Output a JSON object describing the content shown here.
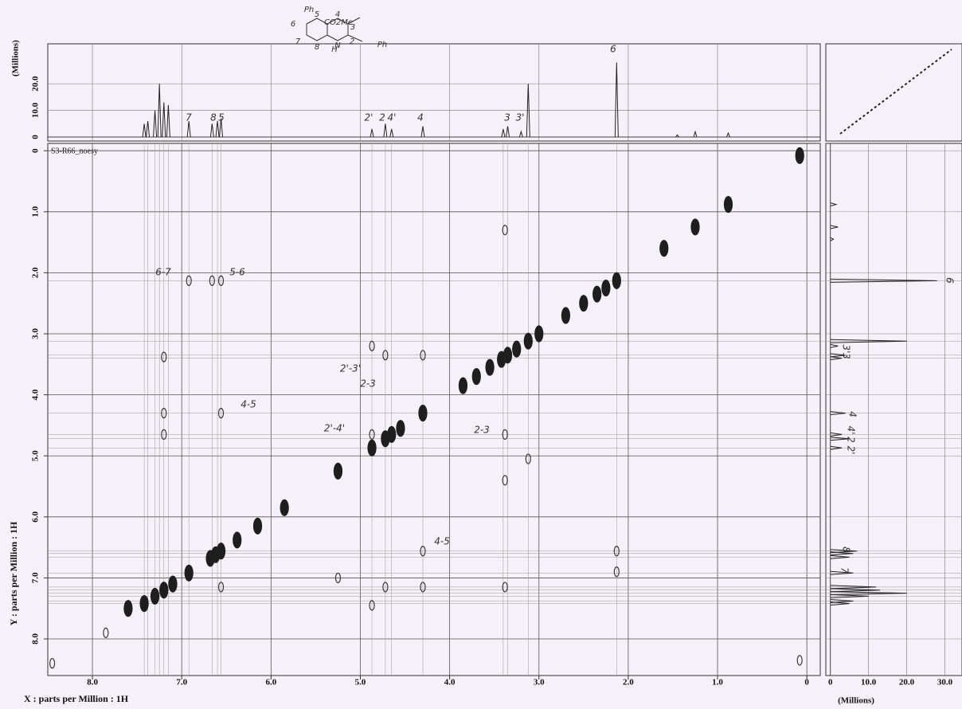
{
  "chart_data": [
    {
      "type": "contour",
      "title": "S3-R66_noesy",
      "x_label": "X : parts per Million : 1H",
      "y_label": "Y : parts per Million : 1H",
      "xlim": [
        8.5,
        -0.15
      ],
      "ylim": [
        -0.12,
        8.6
      ],
      "xticks": [
        {
          "value": 8,
          "label": "8.0"
        },
        {
          "value": 7,
          "label": "7.0"
        },
        {
          "value": 6,
          "label": "6.0"
        },
        {
          "value": 5,
          "label": "5.0"
        },
        {
          "value": 4,
          "label": "4.0"
        },
        {
          "value": 3,
          "label": "3.0"
        },
        {
          "value": 2,
          "label": "2.0"
        },
        {
          "value": 1,
          "label": "1.0"
        },
        0
      ],
      "yticks": [
        0,
        {
          "value": 1,
          "label": "1.0"
        },
        {
          "value": 2,
          "label": "2.0"
        },
        {
          "value": 3,
          "label": "3.0"
        },
        {
          "value": 4,
          "label": "4.0"
        },
        {
          "value": 5,
          "label": "5.0"
        },
        {
          "value": 6,
          "label": "6.0"
        },
        {
          "value": 7,
          "label": "7.0"
        },
        {
          "value": 8,
          "label": "8.0"
        }
      ],
      "grid": true,
      "series": [
        {
          "color": "#1e1e1e",
          "x": [
            0.08,
            0.88,
            1.25,
            1.6,
            2.13,
            2.25,
            2.35,
            2.5,
            2.7,
            3.0,
            3.12,
            3.25,
            3.35,
            3.42,
            3.55,
            3.7,
            3.85,
            4.3,
            4.55,
            4.65,
            4.72,
            4.87,
            5.25,
            5.85,
            6.15,
            6.38,
            6.56,
            6.62,
            6.68,
            6.92,
            7.1,
            7.2,
            7.3,
            7.42,
            7.6
          ],
          "values": [
            0.08,
            0.88,
            1.25,
            1.6,
            2.13,
            2.25,
            2.35,
            2.5,
            2.7,
            3.0,
            3.12,
            3.25,
            3.35,
            3.42,
            3.55,
            3.7,
            3.85,
            4.3,
            4.55,
            4.65,
            4.72,
            4.87,
            5.25,
            5.85,
            6.15,
            6.38,
            6.56,
            6.62,
            6.68,
            6.92,
            7.1,
            7.2,
            7.3,
            7.42,
            7.5
          ]
        },
        {
          "color": "#3a3a3a",
          "x": [
            6.92,
            6.56,
            6.66,
            7.2,
            7.2,
            7.2,
            6.56,
            6.56,
            4.87,
            4.72,
            4.3,
            4.87,
            4.3,
            4.3,
            4.72,
            3.38,
            3.38,
            3.38,
            3.38,
            2.13,
            2.13,
            5.25,
            4.87,
            8.45,
            7.85,
            0.08,
            3.12
          ],
          "values": [
            2.13,
            2.13,
            2.13,
            3.38,
            4.3,
            4.65,
            4.3,
            7.15,
            3.2,
            3.35,
            3.35,
            4.65,
            6.56,
            7.15,
            7.15,
            4.65,
            5.4,
            7.15,
            1.3,
            6.56,
            6.9,
            7.0,
            7.45,
            8.4,
            7.9,
            8.35,
            5.05
          ]
        }
      ],
      "annotations": [
        "6-7",
        "5-6",
        "2'-3'",
        "2-3",
        "4-5",
        "2'-4'",
        "2-3",
        "4-5"
      ],
      "structure": [
        "Ph",
        "CO2Me",
        "Ph",
        "6",
        "5",
        "7",
        "8",
        "4",
        "3",
        "2",
        "N",
        "H"
      ]
    },
    {
      "type": "spectrum",
      "y_label": "(Millions)",
      "ylim": [
        -1.5,
        35
      ],
      "yticks": [
        0,
        {
          "value": 10,
          "label": "10.0"
        },
        {
          "value": 20,
          "label": "20.0"
        }
      ],
      "x": [
        7.42,
        7.38,
        7.3,
        7.25,
        7.2,
        7.15,
        6.92,
        6.66,
        6.6,
        6.56,
        4.87,
        4.72,
        4.65,
        4.3,
        3.4,
        3.35,
        3.2,
        3.12,
        2.13,
        1.45,
        1.25,
        0.88
      ],
      "values": [
        5,
        6,
        10,
        20,
        13,
        12,
        6,
        5,
        6,
        7,
        3,
        5,
        3,
        4,
        3,
        4,
        2,
        20,
        28,
        0.8,
        2,
        1.5
      ],
      "peak_labels": [
        "7",
        "8",
        "5",
        "2'",
        "2",
        "4'",
        "4",
        "3",
        "3'",
        "6"
      ]
    },
    {
      "type": "spectrum",
      "x_label": "(Millions)",
      "xlim": [
        -1.2,
        34.5
      ],
      "xticks": [
        0,
        {
          "value": 10,
          "label": "10.0"
        },
        {
          "value": 20,
          "label": "20.0"
        },
        {
          "value": 30,
          "label": "30.0"
        }
      ],
      "y": [
        7.42,
        7.38,
        7.3,
        7.25,
        7.2,
        7.15,
        6.92,
        6.66,
        6.6,
        6.56,
        4.87,
        4.72,
        4.65,
        4.3,
        3.4,
        3.35,
        3.2,
        3.12,
        2.13,
        1.45,
        1.25,
        0.88
      ],
      "values": [
        5,
        6,
        10,
        20,
        13,
        12,
        6,
        5,
        6,
        7,
        3,
        5,
        3,
        4,
        3,
        4,
        2,
        20,
        28,
        0.8,
        2,
        1.5
      ],
      "peak_labels": [
        "6",
        "3'",
        "3",
        "4",
        "4'",
        "2",
        "2'",
        "8",
        "7"
      ]
    }
  ]
}
